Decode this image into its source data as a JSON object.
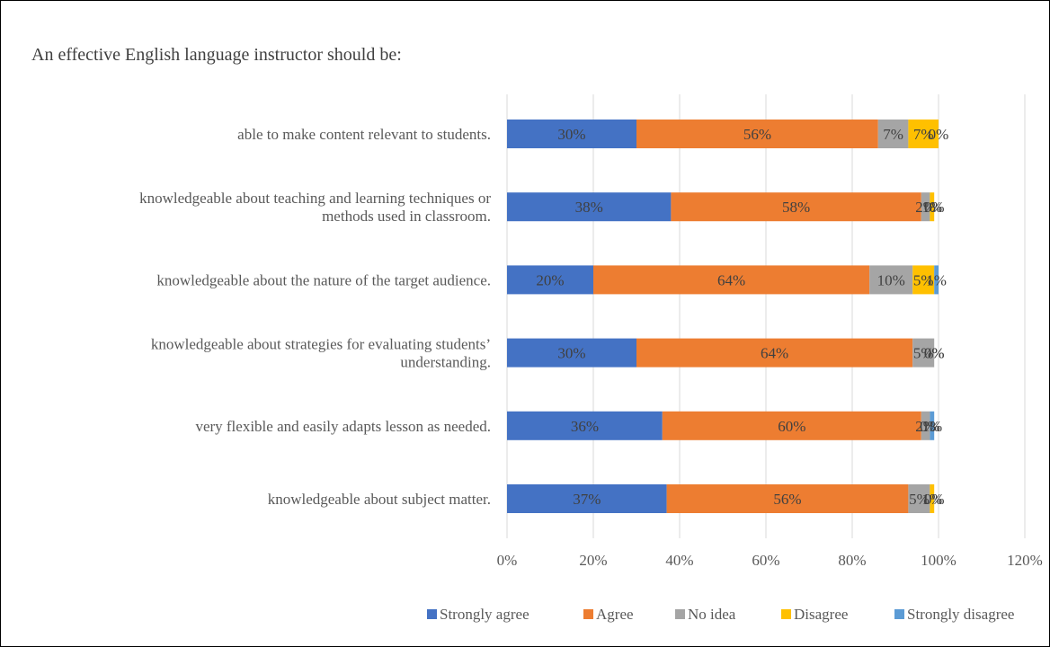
{
  "chart_data": {
    "type": "bar",
    "orientation": "horizontal",
    "stacked": true,
    "title": "An effective English language instructor should be:",
    "categories": [
      [
        "able to make content relevant to students."
      ],
      [
        "knowledgeable about teaching and learning techniques or",
        "methods used in classroom."
      ],
      [
        "knowledgeable about the nature of the target audience."
      ],
      [
        "knowledgeable about strategies for evaluating students’",
        "understanding."
      ],
      [
        "very flexible and easily adapts lesson as needed."
      ],
      [
        "knowledgeable about subject matter."
      ]
    ],
    "series": [
      {
        "name": "Strongly agree",
        "color": "#4472C4",
        "values": [
          30,
          38,
          20,
          30,
          36,
          37
        ]
      },
      {
        "name": "Agree",
        "color": "#ED7D31",
        "values": [
          56,
          58,
          64,
          64,
          60,
          56
        ]
      },
      {
        "name": "No idea",
        "color": "#A5A5A5",
        "values": [
          7,
          2,
          10,
          5,
          2,
          5
        ]
      },
      {
        "name": "Disagree",
        "color": "#FFC000",
        "values": [
          7,
          1,
          5,
          0,
          0,
          1
        ]
      },
      {
        "name": "Strongly disagree",
        "color": "#5B9BD5",
        "values": [
          0,
          0,
          1,
          0,
          1,
          0
        ]
      }
    ],
    "data_labels": [
      [
        "30%",
        "56%",
        "7%",
        "7%",
        "0%"
      ],
      [
        "38%",
        "58%",
        "2%",
        "1%",
        "0%"
      ],
      [
        "20%",
        "64%",
        "10%",
        "5%",
        "1%"
      ],
      [
        "30%",
        "64%",
        "5%",
        "0%",
        "0%"
      ],
      [
        "36%",
        "60%",
        "2%",
        "0%",
        "1%"
      ],
      [
        "37%",
        "56%",
        "5%",
        "1%",
        "0%"
      ]
    ],
    "x_ticks": [
      "0%",
      "20%",
      "40%",
      "60%",
      "80%",
      "100%",
      "120%"
    ],
    "xlim": [
      0,
      120
    ],
    "grid": true,
    "legend_position": "bottom-right"
  }
}
